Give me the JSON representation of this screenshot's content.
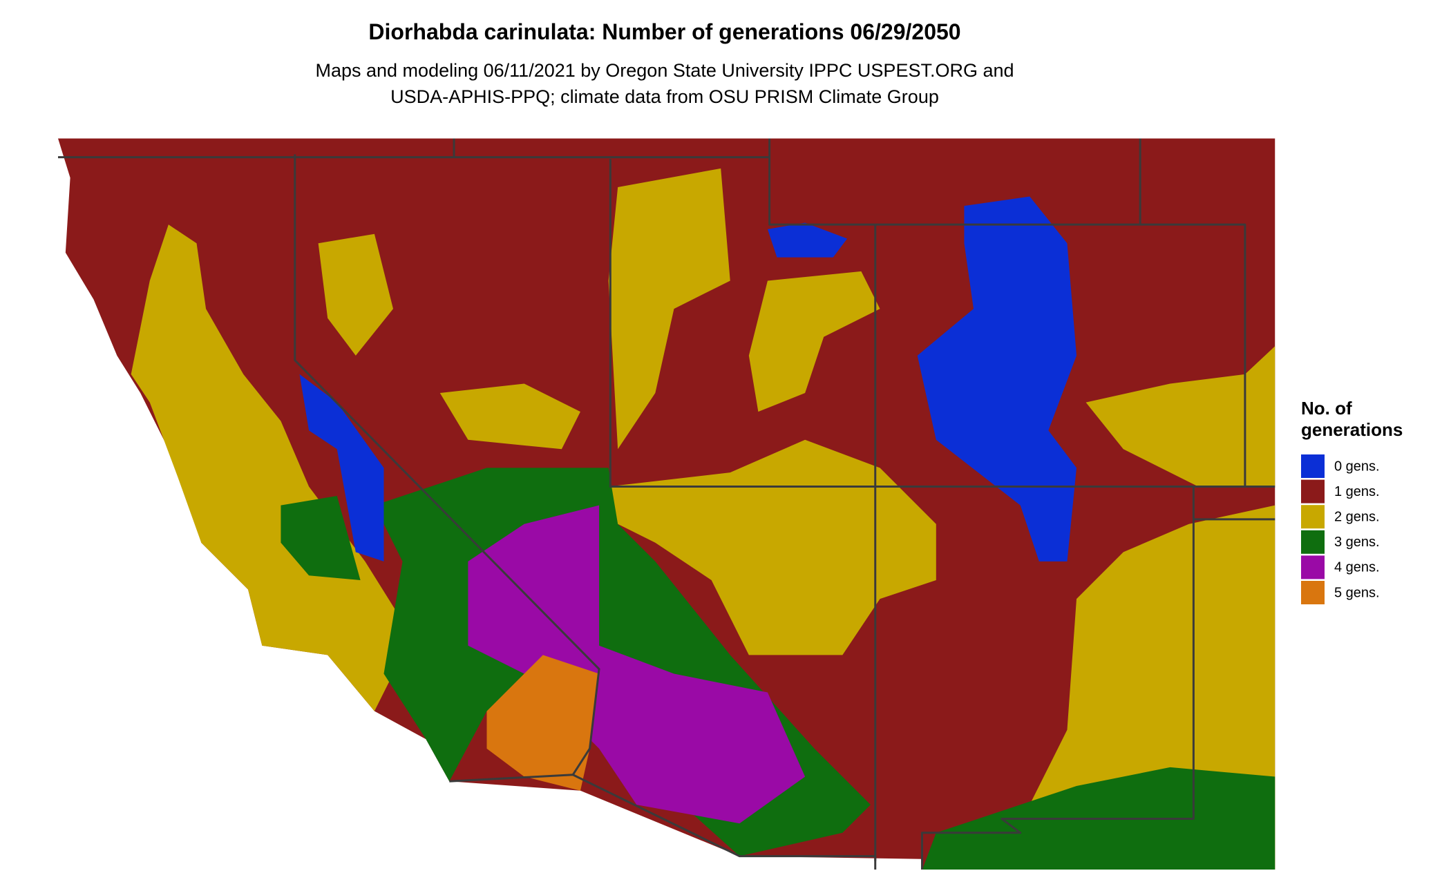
{
  "header": {
    "title": "Diorhabda carinulata: Number of generations 06/29/2050",
    "subtitle_lines": [
      "Maps and modeling 06/11/2021 by Oregon State University IPPC USPEST.ORG and",
      "USDA-APHIS-PPQ; climate data from OSU PRISM Climate Group"
    ]
  },
  "legend": {
    "title_lines": [
      "No. of",
      "generations"
    ],
    "items": [
      {
        "label": "0 gens.",
        "color": "#0b2fd6"
      },
      {
        "label": "1 gens.",
        "color": "#8b1a1a"
      },
      {
        "label": "2 gens.",
        "color": "#c8a800"
      },
      {
        "label": "3 gens.",
        "color": "#0f6e0f"
      },
      {
        "label": "4 gens.",
        "color": "#9a0aa6"
      },
      {
        "label": "5 gens.",
        "color": "#d9760f"
      }
    ]
  }
}
